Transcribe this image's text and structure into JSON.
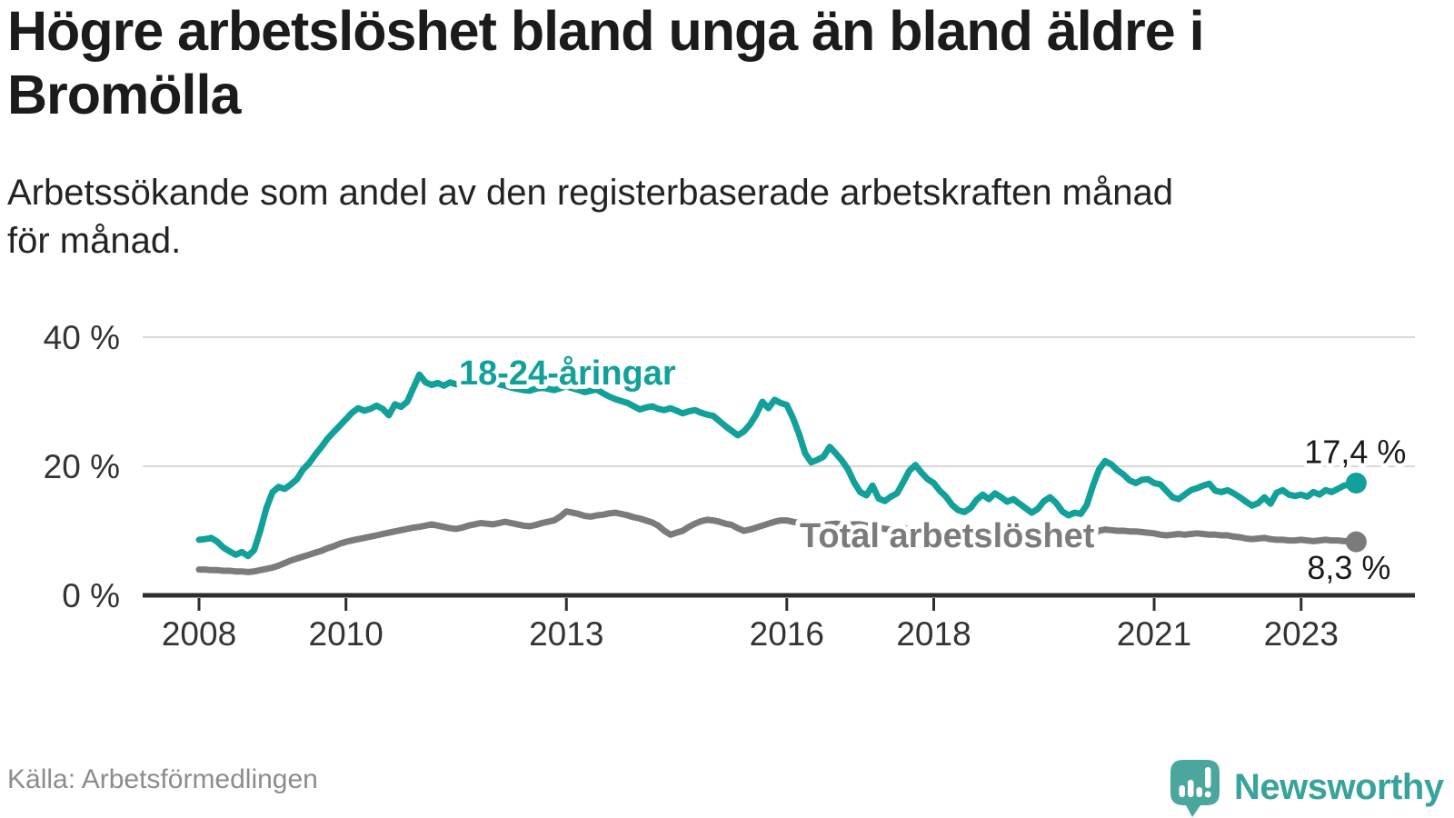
{
  "header": {
    "title_lines": [
      "Högre arbetslöshet bland unga än bland äldre i",
      "Bromölla"
    ],
    "subtitle_lines": [
      "Arbetssökande som andel av den registerbaserade arbetskraften månad",
      "för månad."
    ]
  },
  "chart_data": {
    "type": "line",
    "title": "Högre arbetslöshet bland unga än bland äldre i Bromölla",
    "subtitle": "Arbetssökande som andel av den registerbaserade arbetskraften månad för månad.",
    "unit": "%",
    "grid": "horizontal",
    "x_start": 2008.0,
    "x_step_months": 1,
    "x_end": 2023.75,
    "ylim": [
      0,
      43.5
    ],
    "xlim": [
      2007.23,
      2024.55
    ],
    "yticks": [
      {
        "value": 0,
        "label": "0 %"
      },
      {
        "value": 20,
        "label": "20 %"
      },
      {
        "value": 40,
        "label": "40 %"
      }
    ],
    "xticks": [
      {
        "value": 2008,
        "label": "2008"
      },
      {
        "value": 2010,
        "label": "2010"
      },
      {
        "value": 2013,
        "label": "2013"
      },
      {
        "value": 2016,
        "label": "2016"
      },
      {
        "value": 2018,
        "label": "2018"
      },
      {
        "value": 2021,
        "label": "2021"
      },
      {
        "value": 2023,
        "label": "2023"
      }
    ],
    "series": [
      {
        "name": "18-24-åringar",
        "color": "#12a09a",
        "end_value": 17.4,
        "end_label": "17,4 %",
        "values": [
          8.6,
          8.7,
          8.9,
          8.3,
          7.4,
          6.8,
          6.3,
          6.7,
          6.1,
          7.0,
          10.0,
          13.5,
          16.0,
          16.8,
          16.5,
          17.2,
          18.0,
          19.5,
          20.5,
          21.8,
          23.0,
          24.3,
          25.3,
          26.3,
          27.3,
          28.3,
          29.0,
          28.6,
          28.9,
          29.4,
          28.9,
          27.9,
          29.6,
          29.2,
          30.0,
          32.1,
          34.2,
          33.0,
          32.6,
          32.9,
          32.5,
          33.0,
          32.7,
          33.1,
          33.3,
          33.0,
          33.4,
          33.1,
          33.0,
          32.7,
          32.5,
          32.2,
          32.0,
          31.8,
          31.7,
          32.0,
          32.2,
          32.0,
          31.8,
          32.1,
          32.4,
          32.1,
          31.8,
          31.5,
          31.7,
          31.9,
          31.3,
          30.8,
          30.4,
          30.1,
          29.8,
          29.3,
          28.8,
          29.1,
          29.3,
          28.9,
          28.7,
          29.0,
          28.6,
          28.2,
          28.5,
          28.7,
          28.3,
          28.0,
          27.8,
          27.0,
          26.2,
          25.5,
          24.8,
          25.4,
          26.5,
          28.0,
          30.0,
          29.0,
          30.3,
          29.8,
          29.5,
          27.5,
          25.0,
          22.0,
          20.6,
          21.0,
          21.5,
          23.0,
          22.0,
          20.9,
          19.5,
          17.5,
          16.0,
          15.5,
          17.0,
          15.0,
          14.6,
          15.3,
          15.8,
          17.5,
          19.3,
          20.2,
          19.0,
          18.0,
          17.4,
          16.2,
          15.3,
          14.0,
          13.2,
          12.9,
          13.5,
          14.8,
          15.6,
          14.9,
          15.8,
          15.2,
          14.5,
          14.9,
          14.2,
          13.5,
          12.8,
          13.4,
          14.6,
          15.2,
          14.3,
          13.0,
          12.4,
          12.8,
          12.6,
          14.0,
          17.0,
          19.5,
          20.8,
          20.3,
          19.4,
          18.7,
          17.8,
          17.4,
          17.9,
          18.0,
          17.4,
          17.2,
          16.2,
          15.2,
          14.9,
          15.6,
          16.3,
          16.6,
          17.0,
          17.3,
          16.2,
          16.0,
          16.3,
          15.8,
          15.2,
          14.5,
          13.9,
          14.3,
          15.2,
          14.2,
          15.9,
          16.3,
          15.6,
          15.4,
          15.6,
          15.3,
          16.0,
          15.6,
          16.3,
          16.0,
          16.5,
          17.0,
          17.2,
          17.4
        ]
      },
      {
        "name": "Total arbetslöshet",
        "color": "#7b7b7b",
        "end_value": 8.3,
        "end_label": "8,3 %",
        "values": [
          4.0,
          4.0,
          3.9,
          3.9,
          3.8,
          3.8,
          3.7,
          3.7,
          3.6,
          3.7,
          3.9,
          4.1,
          4.3,
          4.6,
          5.0,
          5.4,
          5.7,
          6.0,
          6.3,
          6.6,
          6.9,
          7.3,
          7.6,
          8.0,
          8.3,
          8.5,
          8.7,
          8.9,
          9.1,
          9.3,
          9.5,
          9.7,
          9.9,
          10.1,
          10.3,
          10.5,
          10.6,
          10.8,
          11.0,
          10.8,
          10.6,
          10.4,
          10.3,
          10.5,
          10.8,
          11.0,
          11.2,
          11.1,
          11.0,
          11.2,
          11.4,
          11.2,
          11.0,
          10.8,
          10.7,
          10.9,
          11.2,
          11.4,
          11.6,
          12.2,
          13.0,
          12.8,
          12.6,
          12.3,
          12.2,
          12.4,
          12.5,
          12.7,
          12.8,
          12.6,
          12.4,
          12.1,
          11.9,
          11.6,
          11.3,
          10.8,
          10.0,
          9.4,
          9.7,
          10.0,
          10.6,
          11.1,
          11.5,
          11.7,
          11.6,
          11.4,
          11.1,
          10.9,
          10.4,
          10.0,
          10.2,
          10.5,
          10.8,
          11.1,
          11.4,
          11.6,
          11.6,
          11.4,
          11.2,
          11.0,
          10.9,
          10.8,
          10.9,
          11.0,
          11.1,
          11.0,
          10.9,
          11.0,
          11.0,
          10.8,
          10.6,
          10.5,
          10.3,
          10.2,
          10.3,
          10.4,
          10.3,
          10.2,
          10.1,
          10.0,
          10.0,
          9.9,
          9.7,
          9.6,
          9.5,
          9.4,
          9.5,
          9.5,
          9.4,
          9.4,
          9.3,
          9.3,
          9.3,
          9.2,
          9.1,
          9.1,
          9.0,
          9.0,
          9.1,
          9.1,
          9.2,
          9.2,
          9.1,
          9.2,
          9.2,
          9.3,
          9.6,
          10.0,
          10.2,
          10.1,
          10.0,
          10.0,
          9.9,
          9.9,
          9.8,
          9.7,
          9.6,
          9.4,
          9.3,
          9.4,
          9.5,
          9.4,
          9.5,
          9.6,
          9.5,
          9.4,
          9.4,
          9.3,
          9.3,
          9.1,
          9.0,
          8.8,
          8.7,
          8.8,
          8.9,
          8.7,
          8.6,
          8.6,
          8.5,
          8.5,
          8.6,
          8.5,
          8.4,
          8.5,
          8.6,
          8.5,
          8.5,
          8.4,
          8.4,
          8.3
        ]
      }
    ]
  },
  "footer": {
    "source": "Källa: Arbetsförmedlingen",
    "brand": "Newsworthy"
  },
  "colors": {
    "accent_teal": "#12a09a",
    "line_gray": "#7b7b7b",
    "axis": "#2e2e2e",
    "grid": "#d8d8d8",
    "title_text": "#1b1b1b",
    "muted_text": "#8c8c8c",
    "logo_teal": "#4ba69d"
  }
}
